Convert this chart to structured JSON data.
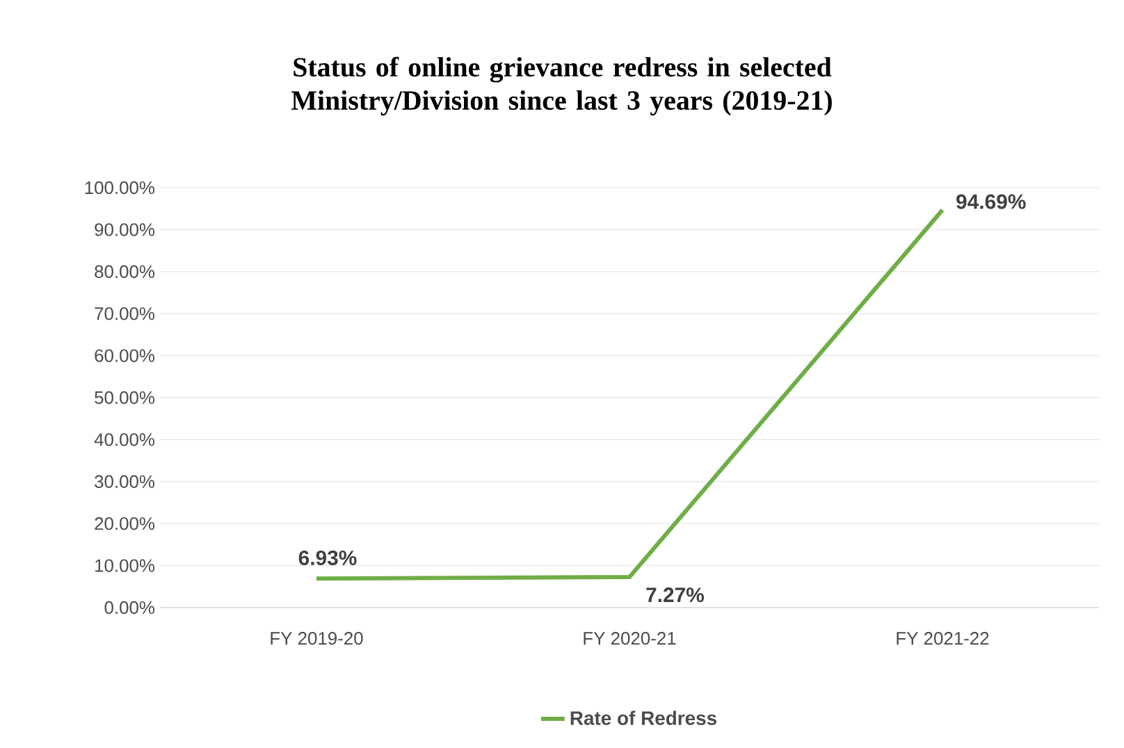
{
  "chart_data": {
    "type": "line",
    "title": "Status of online grievance redress in selected Ministry/Division since last 3 years (2019-21)",
    "categories": [
      "FY 2019-20",
      "FY 2020-21",
      "FY 2021-22"
    ],
    "series": [
      {
        "name": "Rate of Redress",
        "color": "#70ad47",
        "values": [
          6.93,
          7.27,
          94.69
        ],
        "value_labels": [
          "6.93%",
          "7.27%",
          "94.69%"
        ]
      }
    ],
    "ylim": [
      0,
      100
    ],
    "yticks": [
      {
        "value": 0,
        "label": "0.00%"
      },
      {
        "value": 10,
        "label": "10.00%"
      },
      {
        "value": 20,
        "label": "20.00%"
      },
      {
        "value": 30,
        "label": "30.00%"
      },
      {
        "value": 40,
        "label": "40.00%"
      },
      {
        "value": 50,
        "label": "50.00%"
      },
      {
        "value": 60,
        "label": "60.00%"
      },
      {
        "value": 70,
        "label": "70.00%"
      },
      {
        "value": 80,
        "label": "80.00%"
      },
      {
        "value": 90,
        "label": "90.00%"
      },
      {
        "value": 100,
        "label": "100.00%"
      }
    ],
    "grid": "y",
    "legend": "bottom",
    "marker": "none",
    "line_style": "solid"
  }
}
